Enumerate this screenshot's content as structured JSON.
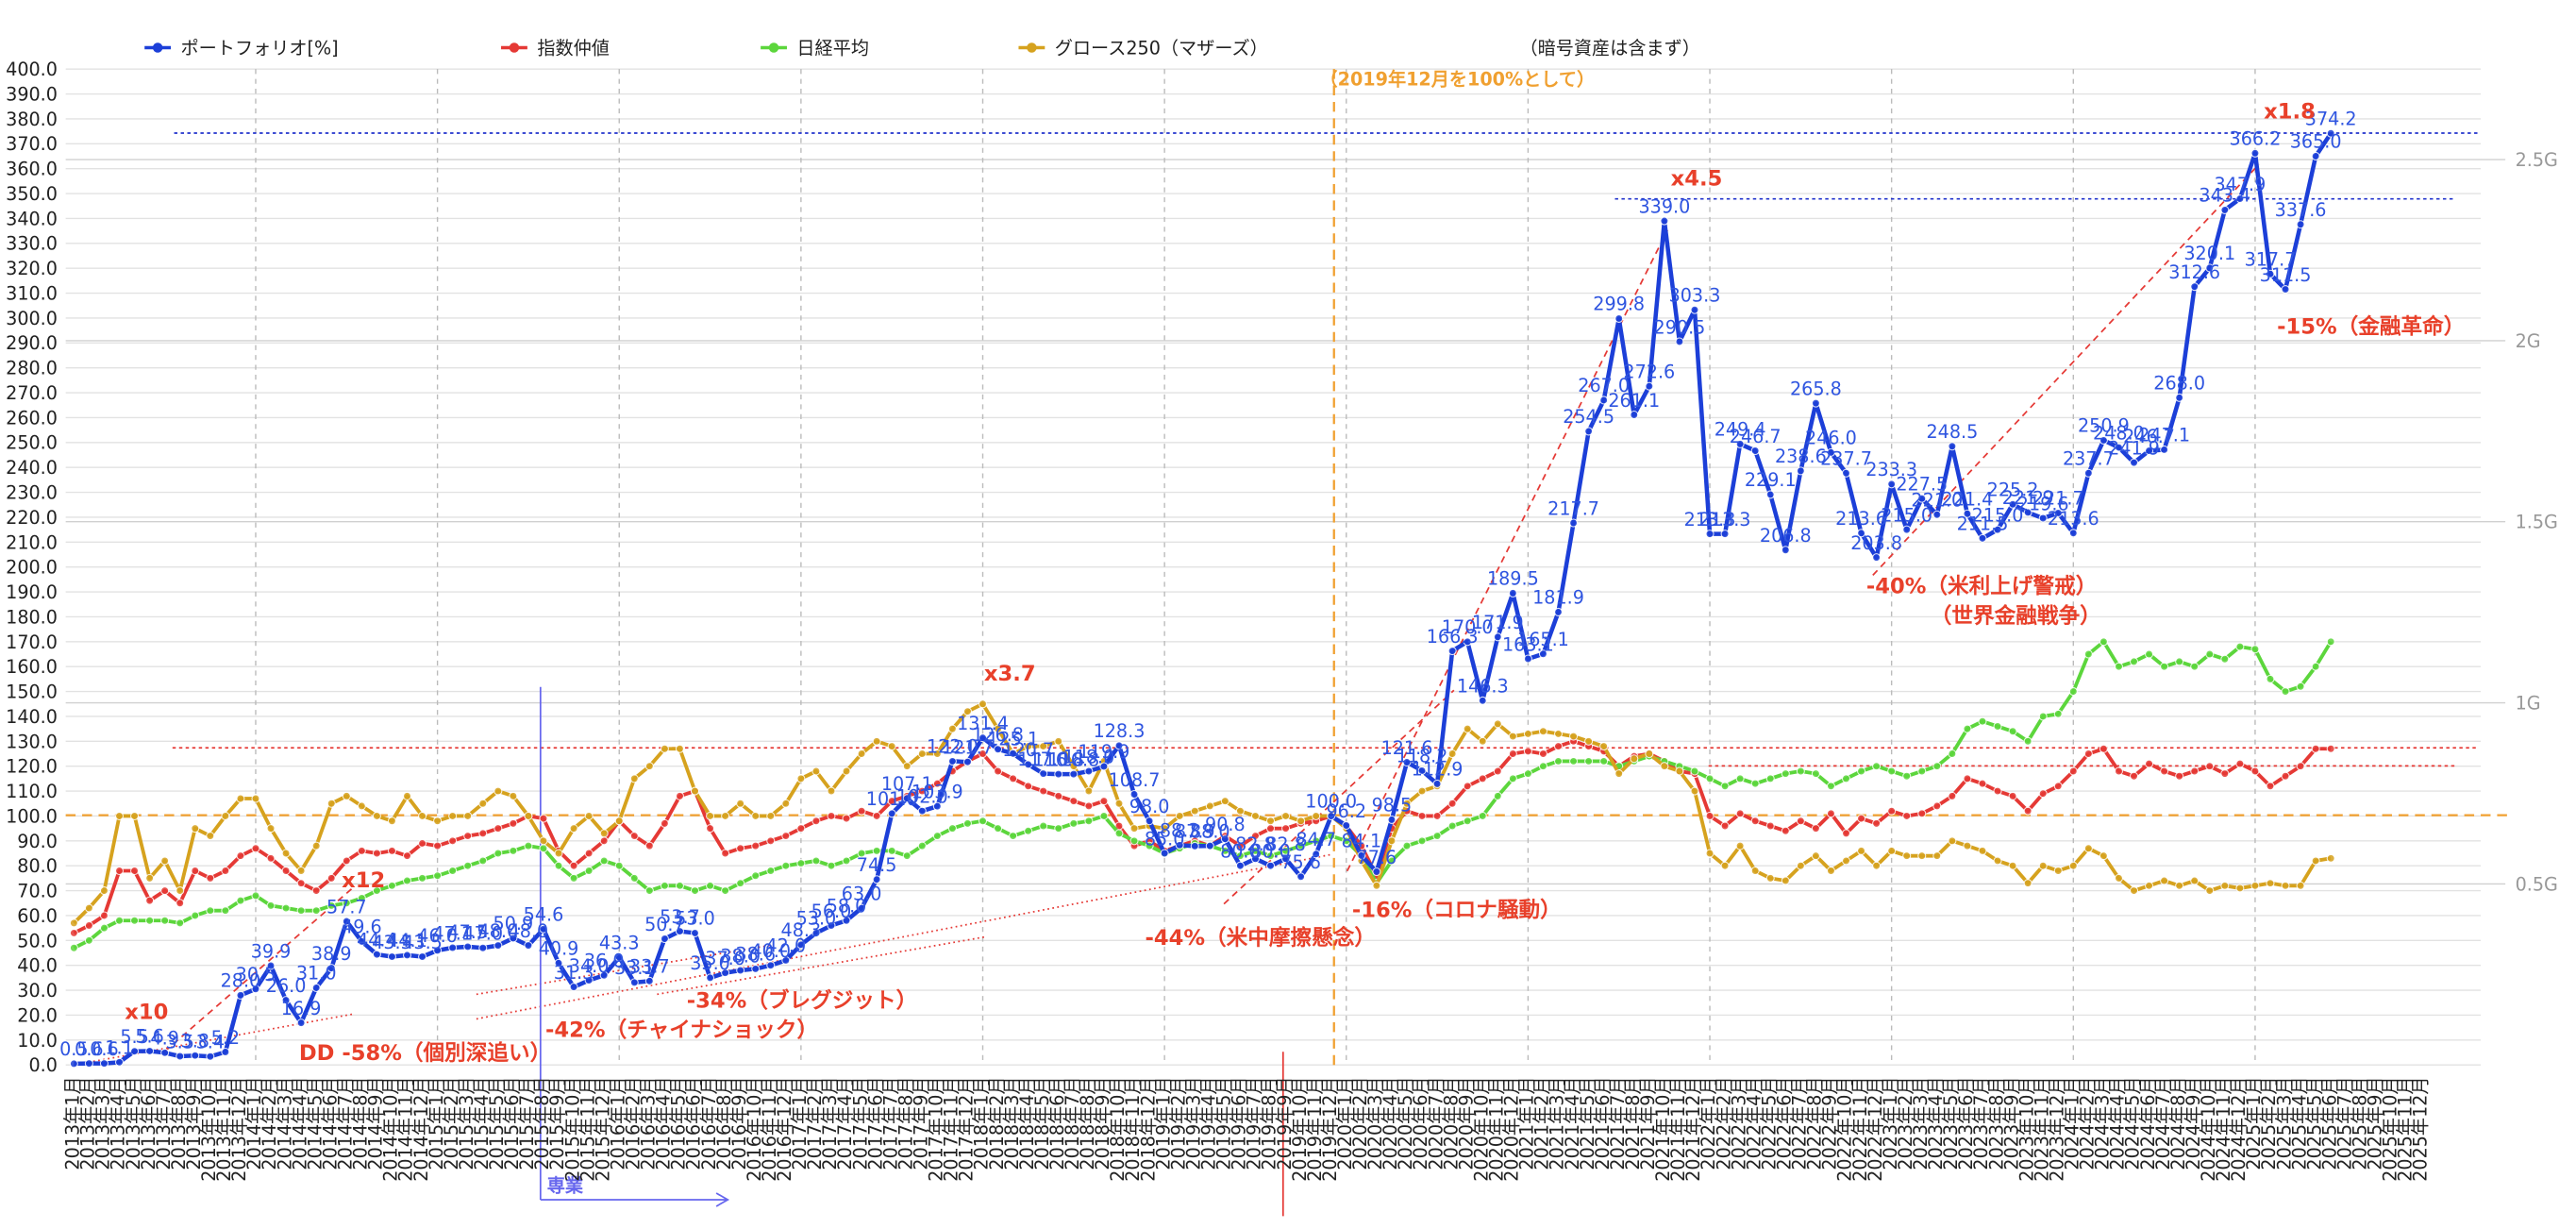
{
  "chart_data": {
    "type": "line",
    "note": "（2019年12月を100%として）",
    "legend_note": "（暗号資産は含まず）",
    "categories": [
      "2013年1月",
      "2013年2月",
      "2013年3月",
      "2013年4月",
      "2013年5月",
      "2013年6月",
      "2013年7月",
      "2013年8月",
      "2013年9月",
      "2013年10月",
      "2013年11月",
      "2013年12月",
      "2014年1月",
      "2014年2月",
      "2014年3月",
      "2014年4月",
      "2014年5月",
      "2014年6月",
      "2014年7月",
      "2014年8月",
      "2014年9月",
      "2014年10月",
      "2014年11月",
      "2014年12月",
      "2015年1月",
      "2015年2月",
      "2015年3月",
      "2015年4月",
      "2015年5月",
      "2015年6月",
      "2015年7月",
      "2015年8月",
      "2015年9月",
      "2015年10月",
      "2015年11月",
      "2015年12月",
      "2016年1月",
      "2016年2月",
      "2016年3月",
      "2016年4月",
      "2016年5月",
      "2016年6月",
      "2016年7月",
      "2016年8月",
      "2016年9月",
      "2016年10月",
      "2016年11月",
      "2016年12月",
      "2017年1月",
      "2017年2月",
      "2017年3月",
      "2017年4月",
      "2017年5月",
      "2017年6月",
      "2017年7月",
      "2017年8月",
      "2017年9月",
      "2017年10月",
      "2017年11月",
      "2017年12月",
      "2018年1月",
      "2018年2月",
      "2018年3月",
      "2018年4月",
      "2018年5月",
      "2018年6月",
      "2018年7月",
      "2018年8月",
      "2018年9月",
      "2018年10月",
      "2018年11月",
      "2018年12月",
      "2019年1月",
      "2019年2月",
      "2019年3月",
      "2019年4月",
      "2019年5月",
      "2019年6月",
      "2019年7月",
      "2019年8月",
      "2019年9月",
      "2019年10月",
      "2019年11月",
      "2019年12月",
      "2020年1月",
      "2020年2月",
      "2020年3月",
      "2020年4月",
      "2020年5月",
      "2020年6月",
      "2020年7月",
      "2020年8月",
      "2020年9月",
      "2020年10月",
      "2020年11月",
      "2020年12月",
      "2021年1月",
      "2021年2月",
      "2021年3月",
      "2021年4月",
      "2021年5月",
      "2021年6月",
      "2021年7月",
      "2021年8月",
      "2021年9月",
      "2021年10月",
      "2021年11月",
      "2021年12月",
      "2022年1月",
      "2022年2月",
      "2022年3月",
      "2022年4月",
      "2022年5月",
      "2022年6月",
      "2022年7月",
      "2022年8月",
      "2022年9月",
      "2022年10月",
      "2022年11月",
      "2022年12月",
      "2023年1月",
      "2023年2月",
      "2023年3月",
      "2023年4月",
      "2023年5月",
      "2023年6月",
      "2023年7月",
      "2023年8月",
      "2023年9月",
      "2023年10月",
      "2023年11月",
      "2023年12月",
      "2024年1月",
      "2024年2月",
      "2024年3月",
      "2024年4月",
      "2024年5月",
      "2024年6月",
      "2024年7月",
      "2024年8月",
      "2024年9月",
      "2024年10月",
      "2024年11月",
      "2024年12月",
      "2025年1月",
      "2025年2月",
      "2025年3月",
      "2025年4月",
      "2025年5月",
      "2025年6月",
      "2025年7月",
      "2025年8月",
      "2025年9月",
      "2025年10月",
      "2025年11月",
      "2025年12月"
    ],
    "series": [
      {
        "name": "指数仲値",
        "color": "#e53935",
        "values": [
          53,
          56,
          60,
          78,
          78,
          66,
          70,
          65,
          78,
          75,
          78,
          84,
          87,
          83,
          78,
          73,
          70,
          75,
          82,
          86,
          85,
          86,
          84,
          89,
          88,
          90,
          92,
          93,
          95,
          97,
          100,
          99,
          86,
          80,
          85,
          90,
          98,
          92,
          88,
          97,
          108,
          110,
          95,
          85,
          87,
          88,
          90,
          92,
          95,
          98,
          100,
          99,
          102,
          100,
          106,
          108,
          110,
          113,
          118,
          122,
          125,
          118,
          115,
          112,
          110,
          108,
          106,
          104,
          106,
          96,
          88,
          90,
          86,
          88,
          90,
          88,
          92,
          88,
          92,
          95,
          95,
          97,
          98,
          100,
          96,
          88,
          76,
          95,
          102,
          100,
          100,
          105,
          112,
          115,
          118,
          125,
          126,
          125,
          128,
          130,
          128,
          126,
          120,
          124,
          125,
          122,
          118,
          117,
          100,
          96,
          101,
          98,
          96,
          94,
          98,
          95,
          101,
          93,
          99,
          97,
          102,
          100,
          101,
          104,
          108,
          115,
          113,
          110,
          108,
          102,
          109,
          112,
          118,
          125,
          127,
          118,
          116,
          121,
          118,
          116,
          118,
          120,
          117,
          121,
          118,
          112,
          116,
          120,
          127,
          127,
          null,
          null,
          null,
          null,
          null,
          null
        ]
      },
      {
        "name": "日経平均",
        "color": "#5cd63c",
        "values": [
          47,
          50,
          55,
          58,
          58,
          58,
          58,
          57,
          60,
          62,
          62,
          66,
          68,
          64,
          63,
          62,
          62,
          64,
          65,
          67,
          70,
          72,
          74,
          75,
          76,
          78,
          80,
          82,
          85,
          86,
          88,
          87,
          80,
          75,
          78,
          82,
          80,
          75,
          70,
          72,
          72,
          70,
          72,
          70,
          73,
          76,
          78,
          80,
          81,
          82,
          80,
          82,
          85,
          86,
          86,
          84,
          88,
          92,
          95,
          97,
          98,
          95,
          92,
          94,
          96,
          95,
          97,
          98,
          100,
          93,
          90,
          88,
          85,
          87,
          89,
          88,
          86,
          84,
          86,
          84,
          86,
          88,
          90,
          92,
          90,
          84,
          73,
          82,
          88,
          90,
          92,
          96,
          98,
          100,
          108,
          115,
          117,
          120,
          122,
          122,
          122,
          122,
          120,
          122,
          124,
          122,
          120,
          118,
          115,
          112,
          115,
          113,
          115,
          117,
          118,
          117,
          112,
          115,
          118,
          120,
          118,
          116,
          118,
          120,
          125,
          135,
          138,
          136,
          134,
          130,
          140,
          141,
          150,
          165,
          170,
          160,
          162,
          165,
          160,
          162,
          160,
          165,
          163,
          168,
          167,
          155,
          150,
          152,
          160,
          170,
          null,
          null,
          null,
          null,
          null,
          null
        ]
      },
      {
        "name": "グロース250（マザーズ）",
        "color": "#d6a21e",
        "values": [
          57,
          63,
          70,
          100,
          100,
          75,
          82,
          70,
          95,
          92,
          100,
          107,
          107,
          95,
          85,
          78,
          88,
          105,
          108,
          104,
          100,
          98,
          108,
          100,
          98,
          100,
          100,
          105,
          110,
          108,
          100,
          90,
          85,
          95,
          100,
          93,
          98,
          115,
          120,
          127,
          127,
          110,
          100,
          100,
          105,
          100,
          100,
          105,
          115,
          118,
          110,
          118,
          125,
          130,
          128,
          120,
          125,
          125,
          135,
          142,
          145,
          135,
          125,
          128,
          128,
          130,
          120,
          110,
          122,
          105,
          95,
          96,
          95,
          100,
          102,
          104,
          106,
          102,
          100,
          98,
          100,
          98,
          100,
          100,
          95,
          82,
          72,
          90,
          105,
          110,
          112,
          125,
          135,
          130,
          137,
          132,
          133,
          134,
          133,
          132,
          130,
          128,
          117,
          123,
          125,
          120,
          118,
          110,
          85,
          80,
          88,
          78,
          75,
          74,
          80,
          84,
          78,
          82,
          86,
          80,
          86,
          84,
          84,
          84,
          90,
          88,
          86,
          82,
          80,
          73,
          80,
          78,
          80,
          87,
          84,
          75,
          70,
          72,
          74,
          72,
          74,
          70,
          72,
          71,
          72,
          73,
          72,
          72,
          82,
          83,
          null,
          null,
          null,
          null,
          null,
          null
        ]
      },
      {
        "name": "ポートフォリオ[%]",
        "color": "#1c3fd8",
        "values": [
          0.5,
          0.6,
          0.6,
          1.1,
          5.5,
          5.6,
          4.9,
          3.5,
          3.8,
          3.4,
          5.2,
          28,
          30.5,
          39.9,
          26,
          16.9,
          31,
          38.9,
          57.7,
          49.6,
          44.4,
          43.5,
          44.1,
          43.5,
          46,
          47.1,
          47.5,
          47,
          48,
          50.9,
          48,
          54.6,
          40.9,
          31.3,
          34,
          36,
          43.3,
          33.1,
          33.7,
          50.7,
          53.7,
          53,
          35,
          37,
          38,
          38.6,
          40,
          42,
          48.3,
          53,
          56,
          58,
          63,
          74.5,
          101,
          107.1,
          102,
          103.9,
          122,
          121.7,
          131.4,
          126.8,
          125.1,
          120.7,
          117,
          116.8,
          116.8,
          118,
          119.9,
          128.3,
          108.7,
          98,
          85,
          88.3,
          87.9,
          88,
          90.8,
          80,
          82.8,
          80,
          82.8,
          75.6,
          84.7,
          100,
          96.2,
          84.1,
          77.6,
          98.5,
          121.6,
          118.2,
          112.9,
          166.3,
          170,
          146.3,
          171.9,
          189.5,
          163.1,
          165.1,
          181.9,
          217.7,
          254.5,
          267,
          299.8,
          261.1,
          272.6,
          339,
          290.5,
          303.3,
          213.3,
          213.3,
          249.4,
          246.7,
          229.1,
          206.8,
          238.6,
          265.8,
          246,
          237.7,
          213.6,
          203.8,
          233.3,
          215,
          227.5,
          221,
          248.5,
          221.4,
          211.5,
          215,
          225.2,
          221.9,
          219.6,
          221.7,
          213.6,
          237.7,
          250.9,
          248,
          241.9,
          246.7,
          247.1,
          268,
          312.6,
          320.1,
          343.4,
          347.9,
          366.2,
          317.7,
          311.5,
          337.6,
          365,
          374.2,
          null,
          null,
          null,
          null,
          null,
          null
        ],
        "value_labels": [
          "0.5",
          "0.6",
          "0.6",
          "1.1",
          "5.5",
          "5.6",
          "4.9",
          "3.5",
          "3.8",
          "3.4",
          "5.2",
          "28.0",
          "30.5",
          "39.9",
          "26.0",
          "16.9",
          "31.0",
          "38.9",
          "57.7",
          "49.6",
          "44.4",
          "43.5",
          "44.1",
          "43.5",
          "46.0",
          "47.1",
          "47.5",
          "47.0",
          "48.0",
          "50.9",
          "48.0",
          "54.6",
          "40.9",
          "31.3",
          "34.0",
          "36.0",
          "43.3",
          "33.1",
          "33.7",
          "50.7",
          "53.7",
          "53.0",
          "35.0",
          "37.0",
          "38.0",
          "38.6",
          "40.0",
          "42.0",
          "48.3",
          "53.0",
          "56.0",
          "58.0",
          "63.0",
          "74.5",
          "101.0",
          "107.1",
          "102.0",
          "103.9",
          "122.0",
          "121.7",
          "131.4",
          "126.8",
          "125.1",
          "120.7",
          "117.0",
          "116.8",
          "116.8",
          "118.0",
          "119.9",
          "128.3",
          "108.7",
          "98.0",
          "85.0",
          "88.3",
          "87.9",
          "88.0",
          "90.8",
          "80.0",
          "82.8",
          "80.0",
          "82.8",
          "75.6",
          "84.7",
          "100.0",
          "96.2",
          "84.1",
          "77.6",
          "98.5",
          "121.6",
          "118.2",
          "112.9",
          "166.3",
          "170.0",
          "146.3",
          "171.9",
          "189.5",
          "163.1",
          "165.1",
          "181.9",
          "217.7",
          "254.5",
          "267.0",
          "299.8",
          "261.1",
          "272.6",
          "339.0",
          "290.5",
          "303.3",
          "213.3",
          "213.3",
          "249.4",
          "246.7",
          "229.1",
          "206.8",
          "238.6",
          "265.8",
          "246.0",
          "237.7",
          "213.6",
          "203.8",
          "233.3",
          "215.0",
          "227.5",
          "221.0",
          "248.5",
          "221.4",
          "211.5",
          "215.0",
          "225.2",
          "221.9",
          "219.6",
          "221.7",
          "213.6",
          "237.7",
          "250.9",
          "248.0",
          "241.9",
          "246.7",
          "247.1",
          "268.0",
          "312.6",
          "320.1",
          "343.4",
          "347.9",
          "366.2",
          "317.7",
          "311.5",
          "337.6",
          "365.0",
          "374.2",
          null,
          null,
          null,
          null,
          null,
          null
        ]
      }
    ],
    "ylim": [
      0,
      400
    ],
    "yticks": [
      {
        "value": 0,
        "label": "0.0"
      },
      {
        "value": 10,
        "label": "10.0"
      },
      {
        "value": 20,
        "label": "20.0"
      },
      {
        "value": 30,
        "label": "30.0"
      },
      {
        "value": 40,
        "label": "40.0"
      },
      {
        "value": 50,
        "label": "50.0"
      },
      {
        "value": 60,
        "label": "60.0"
      },
      {
        "value": 70,
        "label": "70.0"
      },
      {
        "value": 80,
        "label": "80.0"
      },
      {
        "value": 90,
        "label": "90.0"
      },
      {
        "value": 100,
        "label": "100.0"
      },
      {
        "value": 110,
        "label": "110.0"
      },
      {
        "value": 120,
        "label": "120.0"
      },
      {
        "value": 130,
        "label": "130.0"
      },
      {
        "value": 140,
        "label": "140.0"
      },
      {
        "value": 150,
        "label": "150.0"
      },
      {
        "value": 160,
        "label": "160.0"
      },
      {
        "value": 170,
        "label": "170.0"
      },
      {
        "value": 180,
        "label": "180.0"
      },
      {
        "value": 190,
        "label": "190.0"
      },
      {
        "value": 200,
        "label": "200.0"
      },
      {
        "value": 210,
        "label": "210.0"
      },
      {
        "value": 220,
        "label": "220.0"
      },
      {
        "value": 230,
        "label": "230.0"
      },
      {
        "value": 240,
        "label": "240.0"
      },
      {
        "value": 250,
        "label": "250.0"
      },
      {
        "value": 260,
        "label": "260.0"
      },
      {
        "value": 270,
        "label": "270.0"
      },
      {
        "value": 280,
        "label": "280.0"
      },
      {
        "value": 290,
        "label": "290.0"
      },
      {
        "value": 300,
        "label": "300.0"
      },
      {
        "value": 310,
        "label": "310.0"
      },
      {
        "value": 320,
        "label": "320.0"
      },
      {
        "value": 330,
        "label": "330.0"
      },
      {
        "value": 340,
        "label": "340.0"
      },
      {
        "value": 350,
        "label": "350.0"
      },
      {
        "value": 360,
        "label": "360.0"
      },
      {
        "value": 370,
        "label": "370.0"
      },
      {
        "value": 380,
        "label": "380.0"
      },
      {
        "value": 390,
        "label": "390.0"
      },
      {
        "value": 400,
        "label": "400.0"
      }
    ],
    "y2lim": [
      0,
      2.75
    ],
    "y2ticks": [
      {
        "value": 0.5,
        "label": "0.5G"
      },
      {
        "value": 1,
        "label": "1G"
      },
      {
        "value": 1.5,
        "label": "1.5G"
      },
      {
        "value": 2,
        "label": "2G"
      },
      {
        "value": 2.5,
        "label": "2.5G"
      }
    ],
    "grid": true,
    "annotations": [
      "x10",
      "x12",
      "DD -58%（個別深追い）",
      "-42%（チャイナショック）",
      "-34%（ブレグジット）",
      "x3.7",
      "-44%（米中摩擦懸念）",
      "-16%（コロナ騒動）",
      "x4.5",
      "-40%（米利上げ警戒）",
      "（世界金融戦争）",
      "x1.8",
      "-15%（金融革命）",
      "専業"
    ]
  }
}
